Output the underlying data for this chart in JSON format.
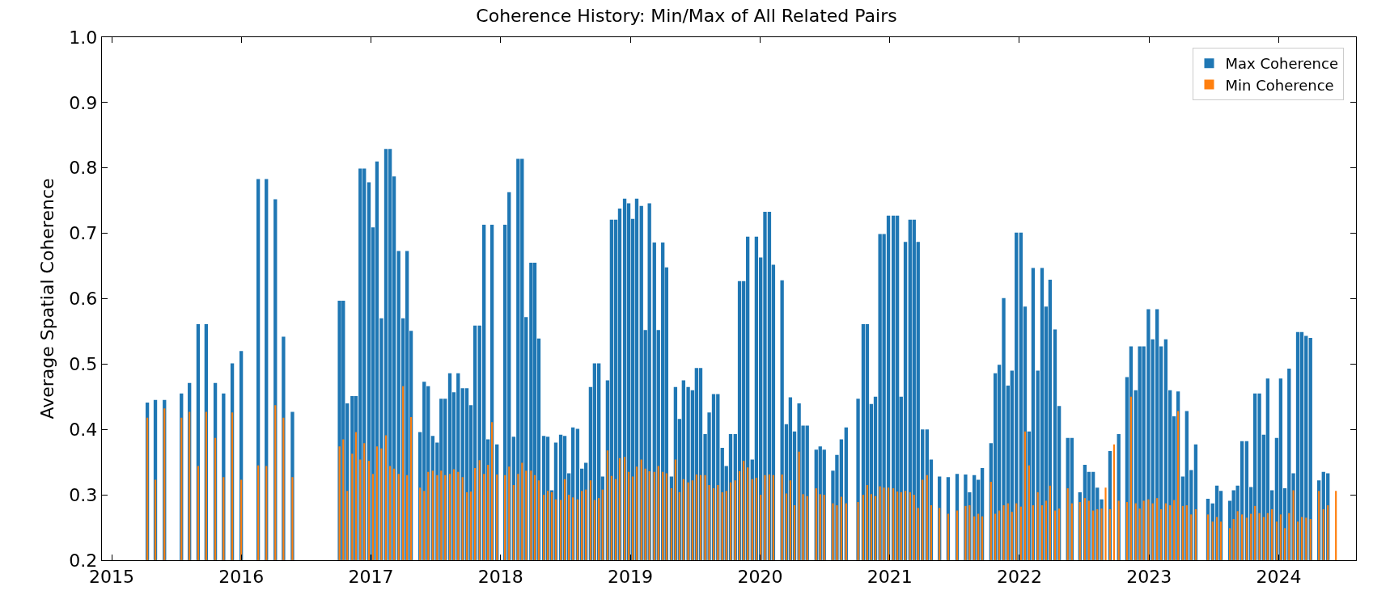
{
  "chart_data": {
    "type": "bar",
    "title": "Coherence History: Min/Max of All Related Pairs",
    "ylabel": "Average Spatial Coherence",
    "x": [
      2015.275,
      2015.337,
      2015.407,
      2015.538,
      2015.6,
      2015.667,
      2015.729,
      2015.799,
      2015.863,
      2015.93,
      2015.999,
      2016.13,
      2016.193,
      2016.262,
      2016.325,
      2016.394,
      2016.757,
      2016.786,
      2016.817,
      2016.855,
      2016.884,
      2016.917,
      2016.948,
      2016.984,
      2017.015,
      2017.046,
      2017.08,
      2017.115,
      2017.147,
      2017.178,
      2017.213,
      2017.247,
      2017.278,
      2017.309,
      2017.378,
      2017.41,
      2017.441,
      2017.476,
      2017.51,
      2017.541,
      2017.572,
      2017.608,
      2017.639,
      2017.672,
      2017.706,
      2017.739,
      2017.77,
      2017.802,
      2017.837,
      2017.871,
      2017.902,
      2017.933,
      2017.971,
      2018.033,
      2018.065,
      2018.1,
      2018.134,
      2018.165,
      2018.196,
      2018.234,
      2018.263,
      2018.294,
      2018.332,
      2018.363,
      2018.394,
      2018.425,
      2018.463,
      2018.494,
      2018.526,
      2018.557,
      2018.593,
      2018.626,
      2018.657,
      2018.693,
      2018.724,
      2018.757,
      2018.786,
      2018.824,
      2018.855,
      2018.887,
      2018.918,
      2018.956,
      2018.987,
      2019.018,
      2019.049,
      2019.085,
      2019.116,
      2019.147,
      2019.185,
      2019.216,
      2019.25,
      2019.279,
      2019.317,
      2019.348,
      2019.379,
      2019.41,
      2019.446,
      2019.479,
      2019.51,
      2019.542,
      2019.577,
      2019.608,
      2019.642,
      2019.675,
      2019.709,
      2019.74,
      2019.773,
      2019.809,
      2019.842,
      2019.874,
      2019.905,
      2019.94,
      2019.972,
      2020.005,
      2020.038,
      2020.072,
      2020.103,
      2020.17,
      2020.203,
      2020.234,
      2020.266,
      2020.301,
      2020.332,
      2020.364,
      2020.433,
      2020.464,
      2020.495,
      2020.562,
      2020.593,
      2020.627,
      2020.664,
      2020.756,
      2020.796,
      2020.827,
      2020.858,
      2020.89,
      2020.925,
      2020.956,
      2020.99,
      2021.028,
      2021.059,
      2021.088,
      2021.121,
      2021.157,
      2021.188,
      2021.219,
      2021.253,
      2021.288,
      2021.32,
      2021.384,
      2021.451,
      2021.52,
      2021.585,
      2021.616,
      2021.652,
      2021.683,
      2021.714,
      2021.781,
      2021.814,
      2021.845,
      2021.879,
      2021.912,
      2021.943,
      2021.977,
      2022.012,
      2022.044,
      2022.075,
      2022.106,
      2022.142,
      2022.175,
      2022.206,
      2022.237,
      2022.275,
      2022.307,
      2022.373,
      2022.405,
      2022.467,
      2022.505,
      2022.536,
      2022.569,
      2022.601,
      2022.634,
      2022.665,
      2022.699,
      2022.73,
      2022.766,
      2022.83,
      2022.861,
      2022.897,
      2022.928,
      2022.959,
      2022.995,
      2023.028,
      2023.062,
      2023.093,
      2023.129,
      2023.162,
      2023.193,
      2023.224,
      2023.26,
      2023.291,
      2023.325,
      2023.36,
      2023.454,
      2023.49,
      2023.523,
      2023.554,
      2023.623,
      2023.652,
      2023.683,
      2023.717,
      2023.753,
      2023.786,
      2023.817,
      2023.851,
      2023.884,
      2023.915,
      2023.948,
      2023.984,
      2024.015,
      2024.047,
      2024.08,
      2024.113,
      2024.147,
      2024.178,
      2024.211,
      2024.245,
      2024.31,
      2024.345,
      2024.379,
      2024.441
    ],
    "series": [
      {
        "name": "Max Coherence",
        "color": "#1f77b4",
        "values": [
          0.441,
          0.445,
          0.445,
          0.455,
          0.471,
          0.561,
          0.561,
          0.471,
          0.455,
          0.501,
          0.52,
          0.783,
          0.783,
          0.752,
          0.542,
          0.427,
          0.597,
          0.597,
          0.44,
          0.451,
          0.451,
          0.799,
          0.799,
          0.778,
          0.709,
          0.81,
          0.57,
          0.829,
          0.829,
          0.787,
          0.673,
          0.57,
          0.673,
          0.551,
          0.396,
          0.473,
          0.466,
          0.39,
          0.38,
          0.447,
          0.447,
          0.486,
          0.457,
          0.486,
          0.463,
          0.463,
          0.437,
          0.559,
          0.559,
          0.713,
          0.385,
          0.713,
          0.377,
          0.713,
          0.763,
          0.389,
          0.814,
          0.814,
          0.572,
          0.655,
          0.655,
          0.539,
          0.39,
          0.389,
          0.307,
          0.38,
          0.392,
          0.39,
          0.333,
          0.403,
          0.401,
          0.34,
          0.349,
          0.465,
          0.501,
          0.501,
          0.328,
          0.475,
          0.721,
          0.721,
          0.738,
          0.753,
          0.746,
          0.722,
          0.753,
          0.742,
          0.552,
          0.746,
          0.686,
          0.552,
          0.686,
          0.648,
          0.328,
          0.465,
          0.416,
          0.475,
          0.465,
          0.46,
          0.494,
          0.494,
          0.393,
          0.426,
          0.454,
          0.454,
          0.372,
          0.344,
          0.393,
          0.393,
          0.627,
          0.627,
          0.695,
          0.354,
          0.695,
          0.663,
          0.733,
          0.733,
          0.652,
          0.628,
          0.408,
          0.449,
          0.397,
          0.44,
          0.406,
          0.406,
          0.369,
          0.374,
          0.369,
          0.337,
          0.361,
          0.385,
          0.403,
          0.447,
          0.561,
          0.561,
          0.439,
          0.45,
          0.699,
          0.699,
          0.727,
          0.727,
          0.727,
          0.45,
          0.687,
          0.721,
          0.721,
          0.687,
          0.4,
          0.4,
          0.354,
          0.328,
          0.327,
          0.332,
          0.331,
          0.304,
          0.33,
          0.323,
          0.341,
          0.379,
          0.486,
          0.499,
          0.601,
          0.467,
          0.49,
          0.701,
          0.701,
          0.588,
          0.397,
          0.647,
          0.49,
          0.647,
          0.588,
          0.629,
          0.553,
          0.436,
          0.387,
          0.387,
          0.304,
          0.346,
          0.335,
          0.335,
          0.311,
          0.293,
          null,
          0.367,
          null,
          0.393,
          0.48,
          0.527,
          0.46,
          0.527,
          0.527,
          0.584,
          0.538,
          0.584,
          0.527,
          0.538,
          0.46,
          0.42,
          0.458,
          0.328,
          0.428,
          0.338,
          0.377,
          0.294,
          0.287,
          0.314,
          0.306,
          0.291,
          0.307,
          0.314,
          0.382,
          0.382,
          0.312,
          0.455,
          0.455,
          0.392,
          0.478,
          0.307,
          0.387,
          0.478,
          0.31,
          0.493,
          0.333,
          0.549,
          0.549,
          0.543,
          0.54,
          0.322,
          0.335,
          0.333,
          null
        ]
      },
      {
        "name": "Min Coherence",
        "color": "#ff7f0e",
        "values": [
          0.418,
          0.323,
          0.432,
          0.418,
          0.427,
          0.344,
          0.427,
          0.387,
          0.327,
          0.426,
          0.323,
          0.345,
          0.344,
          0.437,
          0.418,
          0.327,
          0.374,
          0.385,
          0.306,
          0.363,
          0.396,
          0.354,
          0.379,
          0.352,
          0.332,
          0.374,
          0.371,
          0.391,
          0.344,
          0.34,
          0.332,
          0.466,
          0.33,
          0.419,
          0.311,
          0.306,
          0.335,
          0.337,
          0.33,
          0.337,
          0.33,
          0.332,
          0.339,
          0.335,
          0.327,
          0.304,
          0.305,
          0.341,
          0.353,
          0.332,
          0.346,
          0.411,
          0.331,
          0.33,
          0.343,
          0.315,
          0.332,
          0.349,
          0.337,
          0.337,
          0.33,
          0.322,
          0.3,
          0.306,
          0.304,
          0.293,
          0.292,
          0.324,
          0.3,
          0.296,
          0.293,
          0.306,
          0.308,
          0.322,
          0.292,
          0.295,
          0.308,
          0.368,
          0.329,
          0.324,
          0.356,
          0.358,
          0.335,
          0.328,
          0.343,
          0.354,
          0.34,
          0.336,
          0.335,
          0.344,
          0.335,
          0.333,
          0.31,
          0.354,
          0.304,
          0.324,
          0.319,
          0.322,
          0.331,
          0.33,
          0.33,
          0.315,
          0.31,
          0.315,
          0.304,
          0.306,
          0.319,
          0.322,
          0.336,
          0.352,
          0.342,
          0.324,
          0.326,
          0.3,
          0.33,
          0.331,
          0.33,
          0.331,
          0.302,
          0.322,
          0.284,
          0.366,
          0.301,
          0.298,
          0.31,
          0.301,
          0.3,
          0.287,
          0.284,
          0.297,
          0.287,
          0.289,
          0.3,
          0.315,
          0.301,
          0.298,
          0.313,
          0.311,
          0.311,
          0.31,
          0.305,
          0.304,
          0.306,
          0.304,
          0.3,
          0.28,
          0.323,
          0.33,
          0.284,
          0.28,
          0.271,
          0.276,
          0.283,
          0.284,
          0.267,
          0.271,
          0.267,
          0.32,
          0.271,
          0.276,
          0.284,
          0.287,
          0.274,
          0.287,
          0.282,
          0.397,
          0.345,
          0.284,
          0.304,
          0.284,
          0.291,
          0.314,
          0.276,
          0.279,
          0.31,
          0.287,
          0.289,
          0.295,
          0.291,
          0.276,
          0.278,
          0.279,
          0.311,
          0.278,
          0.377,
          0.291,
          0.289,
          0.45,
          0.287,
          0.279,
          0.291,
          0.293,
          0.287,
          0.295,
          0.278,
          0.287,
          0.284,
          0.292,
          0.428,
          0.283,
          0.284,
          0.27,
          0.278,
          0.27,
          0.259,
          0.266,
          0.259,
          0.249,
          0.263,
          0.275,
          0.27,
          0.265,
          0.271,
          0.283,
          0.272,
          0.266,
          0.272,
          0.278,
          0.259,
          0.27,
          0.249,
          0.272,
          0.307,
          0.259,
          0.266,
          0.265,
          0.263,
          0.306,
          0.278,
          0.284,
          0.306
        ]
      }
    ],
    "xlim": [
      2014.925,
      2024.596
    ],
    "xticks": [
      2015,
      2016,
      2017,
      2018,
      2019,
      2020,
      2021,
      2022,
      2023,
      2024
    ],
    "ylim": [
      0.2,
      1.0
    ],
    "yticks": [
      0.2,
      0.3,
      0.4,
      0.5,
      0.6,
      0.7,
      0.8,
      0.9,
      {
        "value": 1.0,
        "label": "1.0"
      }
    ],
    "legend": "top right"
  }
}
